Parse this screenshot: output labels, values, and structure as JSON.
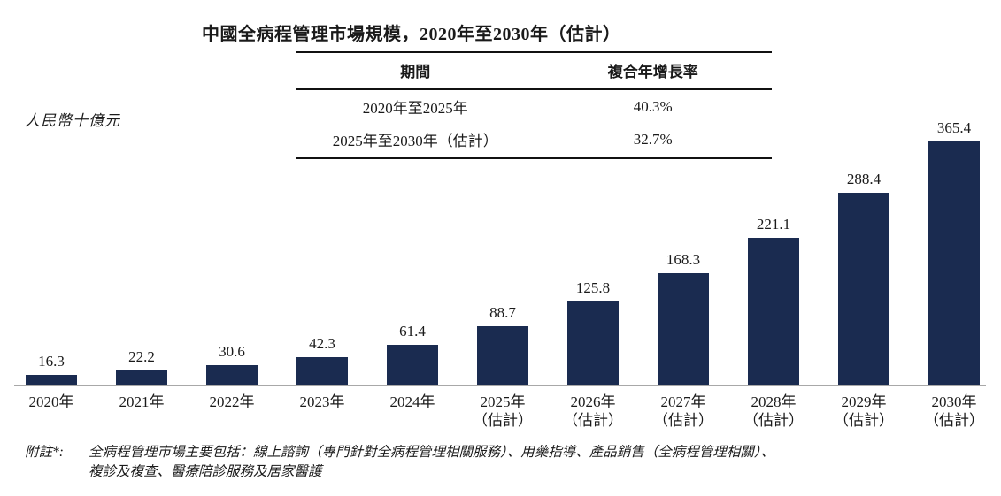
{
  "title": "中國全病程管理市場規模，2020年至2030年（估計）",
  "y_axis_label": "人民幣十億元",
  "cagr_table": {
    "headers": [
      "期間",
      "複合年增長率"
    ],
    "rows": [
      [
        "2020年至2025年",
        "40.3%"
      ],
      [
        "2025年至2030年（估計）",
        "32.7%"
      ]
    ]
  },
  "chart_data": {
    "type": "bar",
    "title": "中國全病程管理市場規模，2020年至2030年（估計）",
    "ylabel": "人民幣十億元",
    "unit": "人民幣十億元",
    "categories": [
      {
        "year": "2020年",
        "note": ""
      },
      {
        "year": "2021年",
        "note": ""
      },
      {
        "year": "2022年",
        "note": ""
      },
      {
        "year": "2023年",
        "note": ""
      },
      {
        "year": "2024年",
        "note": ""
      },
      {
        "year": "2025年",
        "note": "（估計）"
      },
      {
        "year": "2026年",
        "note": "（估計）"
      },
      {
        "year": "2027年",
        "note": "（估計）"
      },
      {
        "year": "2028年",
        "note": "（估計）"
      },
      {
        "year": "2029年",
        "note": "（估計）"
      },
      {
        "year": "2030年",
        "note": "（估計）"
      }
    ],
    "values": [
      16.3,
      22.2,
      30.6,
      42.3,
      61.4,
      88.7,
      125.8,
      168.3,
      221.1,
      288.4,
      365.4
    ],
    "ylim": [
      0,
      380
    ],
    "grid": false,
    "legend": null,
    "bar_color": "#1A2B50",
    "axis_color": "#A8A8A8",
    "cagr_2020_2025": "40.3%",
    "cagr_2025_2030": "32.7%"
  },
  "footnote": {
    "label": "附註*:",
    "lines": [
      "全病程管理市場主要包括：線上諮詢（專門針對全病程管理相關服務）、用藥指導、產品銷售（全病程管理相關）、",
      "複診及複查、醫療陪診服務及居家醫護"
    ]
  }
}
